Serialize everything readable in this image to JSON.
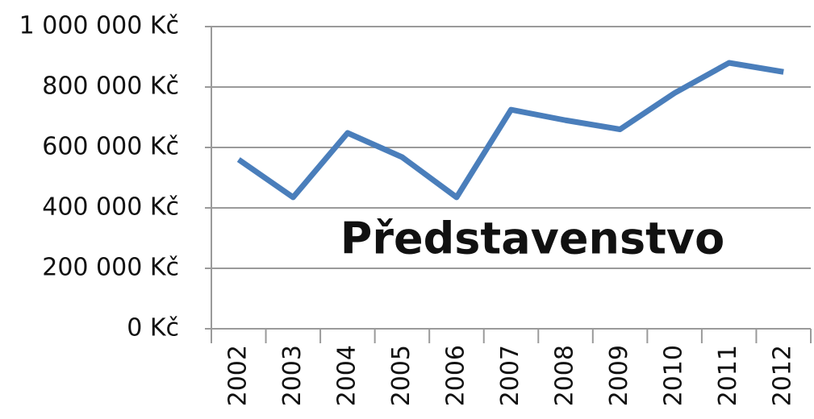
{
  "chart_data": {
    "type": "line",
    "title": "Představenstvo",
    "categories": [
      "2002",
      "2003",
      "2004",
      "2005",
      "2006",
      "2007",
      "2008",
      "2009",
      "2010",
      "2011",
      "2012"
    ],
    "series": [
      {
        "name": "Představenstvo",
        "color": "#4a7ebb",
        "values": [
          560000,
          435000,
          648000,
          568000,
          435000,
          725000,
          690000,
          660000,
          780000,
          880000,
          850000
        ]
      }
    ],
    "ylim": [
      0,
      1000000
    ],
    "yticks": [
      {
        "value": 0,
        "label": "0 Kč"
      },
      {
        "value": 200000,
        "label": "200 000 Kč"
      },
      {
        "value": 400000,
        "label": "400 000 Kč"
      },
      {
        "value": 600000,
        "label": "600 000 Kč"
      },
      {
        "value": 800000,
        "label": "800 000 Kč"
      },
      {
        "value": 1000000,
        "label": "1 000 000 Kč"
      }
    ],
    "grid": true
  }
}
